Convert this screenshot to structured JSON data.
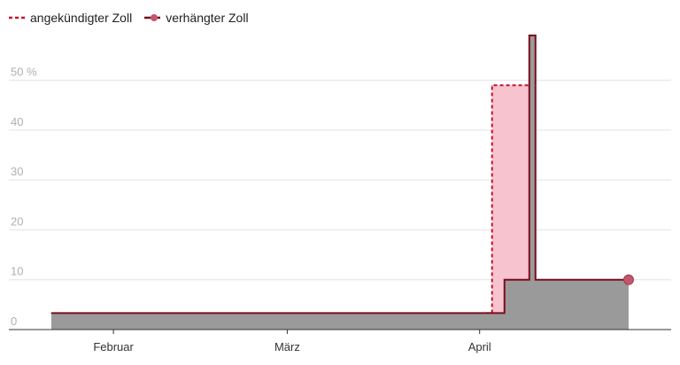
{
  "colors": {
    "announced": "#c8102e",
    "announced_fill": "#f7c3cf",
    "imposed_line": "#7a0d1d",
    "imposed_fill": "#9a9a9a",
    "marker": "#c2566b",
    "grid": "#e3e3e3",
    "axis": "#333333",
    "y_tick": "#b0b0b0",
    "x_tick": "#333333"
  },
  "chart_data": {
    "type": "area",
    "x_axis": {
      "type": "date",
      "range": [
        "2025-01-22",
        "2025-04-30"
      ],
      "tick_labels": [
        {
          "date": "2025-02-01",
          "label": "Februar"
        },
        {
          "date": "2025-03-01",
          "label": "März"
        },
        {
          "date": "2025-04-01",
          "label": "April"
        }
      ]
    },
    "y_axis": {
      "range": [
        0,
        59
      ],
      "ticks": [
        0,
        10,
        20,
        30,
        40,
        50
      ],
      "tick_labels": [
        "0",
        "10",
        "20",
        "30",
        "40",
        "50 %"
      ],
      "grid": true
    },
    "legend": {
      "placement": "top-left",
      "entries": [
        {
          "key": "announced",
          "label": "angekündigter Zoll",
          "style": "dashed"
        },
        {
          "key": "imposed",
          "label": "verhängter Zoll",
          "style": "line-with-marker"
        }
      ]
    },
    "series": [
      {
        "key": "announced",
        "name": "angekündigter Zoll",
        "type": "step",
        "points": [
          {
            "x": "2025-04-02",
            "y": 3.3
          },
          {
            "x": "2025-04-03",
            "y": 49
          },
          {
            "x": "2025-04-10",
            "y": 49
          }
        ]
      },
      {
        "key": "imposed",
        "name": "verhängter Zoll",
        "type": "step",
        "points": [
          {
            "x": "2025-01-22",
            "y": 3.3
          },
          {
            "x": "2025-04-05",
            "y": 10
          },
          {
            "x": "2025-04-09",
            "y": 59
          },
          {
            "x": "2025-04-10",
            "y": 10
          },
          {
            "x": "2025-04-25",
            "y": 10
          }
        ],
        "end_marker": true
      }
    ]
  }
}
